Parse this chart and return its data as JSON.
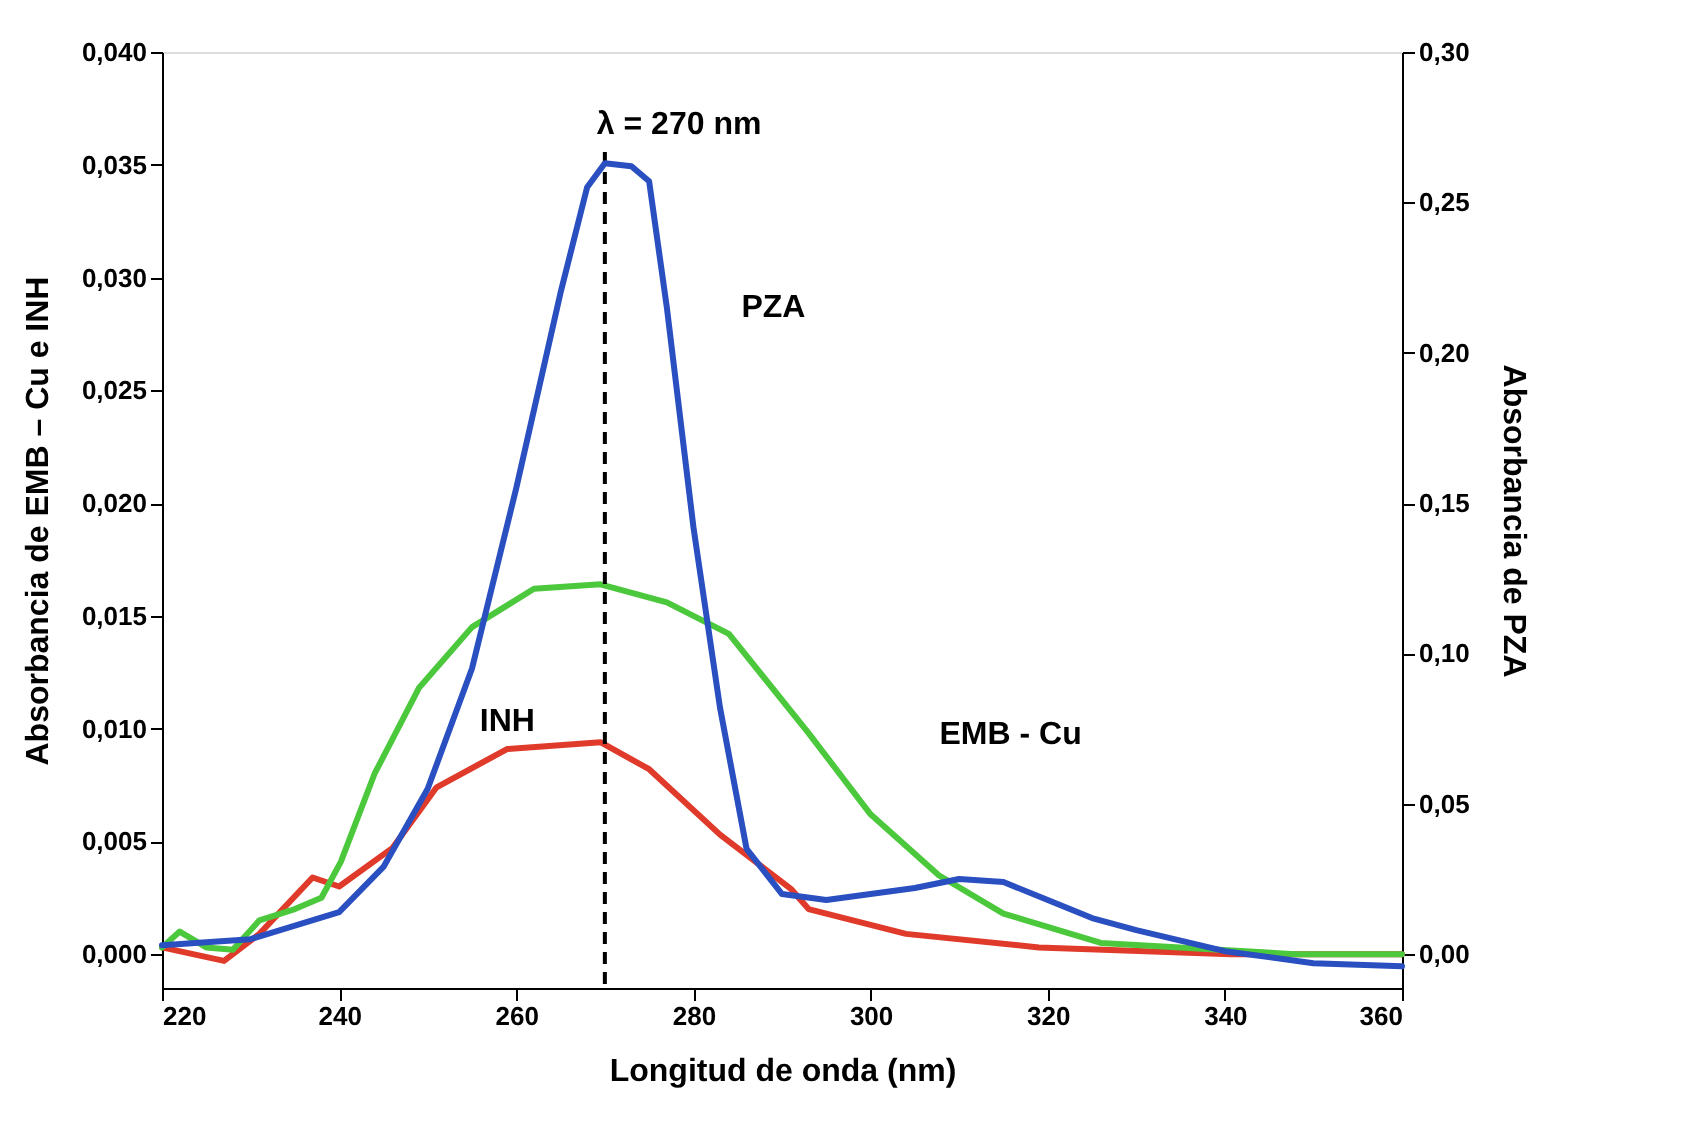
{
  "chart_data": {
    "type": "line",
    "xlabel": "Longitud de onda (nm)",
    "ylabel": "Absorbancia de EMB – Cu e INH",
    "y2label": "Absorbancia de PZA",
    "xlim": [
      220,
      360
    ],
    "xticks": [
      220,
      240,
      260,
      280,
      300,
      320,
      340,
      360
    ],
    "ylim": [
      -0.0015,
      0.04
    ],
    "yticks": [
      {
        "value": 0,
        "label": "0,000"
      },
      {
        "value": 0.005,
        "label": "0,005"
      },
      {
        "value": 0.01,
        "label": "0,010"
      },
      {
        "value": 0.015,
        "label": "0,015"
      },
      {
        "value": 0.02,
        "label": "0,020"
      },
      {
        "value": 0.025,
        "label": "0,025"
      },
      {
        "value": 0.03,
        "label": "0,030"
      },
      {
        "value": 0.035,
        "label": "0,035"
      },
      {
        "value": 0.04,
        "label": "0,040"
      }
    ],
    "y2lim": [
      -0.01125,
      0.3
    ],
    "y2ticks": [
      {
        "value": 0,
        "label": "0,00"
      },
      {
        "value": 0.05,
        "label": "0,05"
      },
      {
        "value": 0.1,
        "label": "0,10"
      },
      {
        "value": 0.15,
        "label": "0,15"
      },
      {
        "value": 0.2,
        "label": "0,20"
      },
      {
        "value": 0.25,
        "label": "0,25"
      },
      {
        "value": 0.3,
        "label": "0,30"
      }
    ],
    "grid": false,
    "legend": false,
    "marker": "none",
    "line_style": "solid",
    "ref_lines": [
      {
        "axis": "x",
        "value": 270,
        "label": "λ = 270 nm",
        "line_style": "dashed",
        "color": "#000000"
      }
    ],
    "series": [
      {
        "name": "INH",
        "color": "#e03a2a",
        "x": [
          220,
          227,
          231,
          237,
          240,
          246,
          251,
          259,
          269.5,
          275,
          283,
          291,
          293,
          304,
          319,
          340.7,
          360
        ],
        "values": [
          0.0003,
          -0.0003,
          0.0009,
          0.0034,
          0.003,
          0.0047,
          0.0074,
          0.0091,
          0.0094,
          0.0082,
          0.0053,
          0.0029,
          0.002,
          0.0009,
          0.0003,
          0.0,
          0.0
        ]
      },
      {
        "name": "EMB - Cu",
        "color": "#4cc83c",
        "x": [
          220,
          222,
          225,
          228,
          231,
          235,
          238,
          240.2,
          244,
          249,
          255,
          262,
          269.5,
          277,
          284,
          293,
          300,
          307.7,
          315,
          326,
          348,
          360
        ],
        "values": [
          0.0003,
          0.001,
          0.0003,
          0.0002,
          0.0015,
          0.002,
          0.0025,
          0.0041,
          0.008,
          0.0118,
          0.0145,
          0.0162,
          0.0164,
          0.0156,
          0.0142,
          0.0098,
          0.0062,
          0.0035,
          0.0018,
          0.0005,
          0.0,
          0.0
        ]
      },
      {
        "name": "PZA",
        "color": "#2a4fc0",
        "axis": "y2",
        "x": [
          220,
          230,
          240,
          245,
          250,
          255,
          260,
          265,
          268,
          270,
          273,
          275,
          277,
          280,
          283,
          286,
          290,
          295,
          300,
          305,
          310,
          315,
          320,
          325,
          330,
          340,
          350,
          360
        ],
        "values": [
          0.003,
          0.005,
          0.014,
          0.029,
          0.055,
          0.095,
          0.155,
          0.22,
          0.255,
          0.263,
          0.262,
          0.257,
          0.215,
          0.142,
          0.082,
          0.035,
          0.02,
          0.018,
          0.02,
          0.022,
          0.025,
          0.024,
          0.018,
          0.012,
          0.008,
          0.001,
          -0.003,
          -0.004
        ]
      }
    ]
  }
}
